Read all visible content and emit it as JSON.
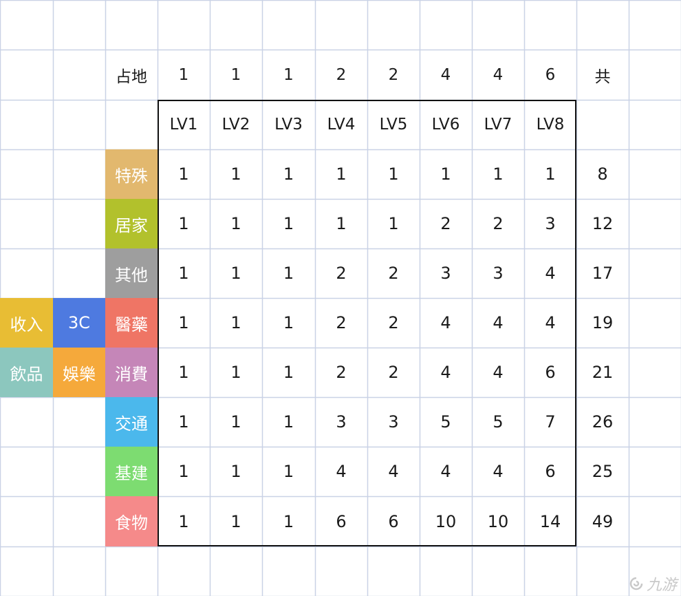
{
  "title_row": {
    "label": "占地",
    "values": [
      "1",
      "1",
      "1",
      "2",
      "2",
      "4",
      "4",
      "6"
    ],
    "total_label": "共"
  },
  "levels": [
    "LV1",
    "LV2",
    "LV3",
    "LV4",
    "LV5",
    "LV6",
    "LV7",
    "LV8"
  ],
  "rows": [
    {
      "name": "特殊",
      "color": "#E2B86E",
      "values": [
        "1",
        "1",
        "1",
        "1",
        "1",
        "1",
        "1",
        "1"
      ],
      "total": "8"
    },
    {
      "name": "居家",
      "color": "#B2C12C",
      "values": [
        "1",
        "1",
        "1",
        "1",
        "1",
        "2",
        "2",
        "3"
      ],
      "total": "12"
    },
    {
      "name": "其他",
      "color": "#9E9E9E",
      "values": [
        "1",
        "1",
        "1",
        "2",
        "2",
        "3",
        "3",
        "4"
      ],
      "total": "17"
    },
    {
      "name": "醫藥",
      "color": "#EF7565",
      "values": [
        "1",
        "1",
        "1",
        "2",
        "2",
        "4",
        "4",
        "4"
      ],
      "total": "19"
    },
    {
      "name": "消費",
      "color": "#C586B8",
      "values": [
        "1",
        "1",
        "1",
        "2",
        "2",
        "4",
        "4",
        "6"
      ],
      "total": "21"
    },
    {
      "name": "交通",
      "color": "#4BB8EC",
      "values": [
        "1",
        "1",
        "1",
        "3",
        "3",
        "5",
        "5",
        "7"
      ],
      "total": "26"
    },
    {
      "name": "基建",
      "color": "#7DDC71",
      "values": [
        "1",
        "1",
        "1",
        "4",
        "4",
        "4",
        "4",
        "6"
      ],
      "total": "25"
    },
    {
      "name": "食物",
      "color": "#F58A8A",
      "values": [
        "1",
        "1",
        "1",
        "6",
        "6",
        "10",
        "10",
        "14"
      ],
      "total": "49"
    }
  ],
  "side_tags": [
    {
      "label": "收入",
      "color": "#E8BD34"
    },
    {
      "label": "3C",
      "color": "#4E7AE0"
    },
    {
      "label": "飲品",
      "color": "#8CC7BE"
    },
    {
      "label": "娛樂",
      "color": "#F5A93B"
    }
  ],
  "grid_color": "#C9D2E6",
  "watermark": "九游"
}
